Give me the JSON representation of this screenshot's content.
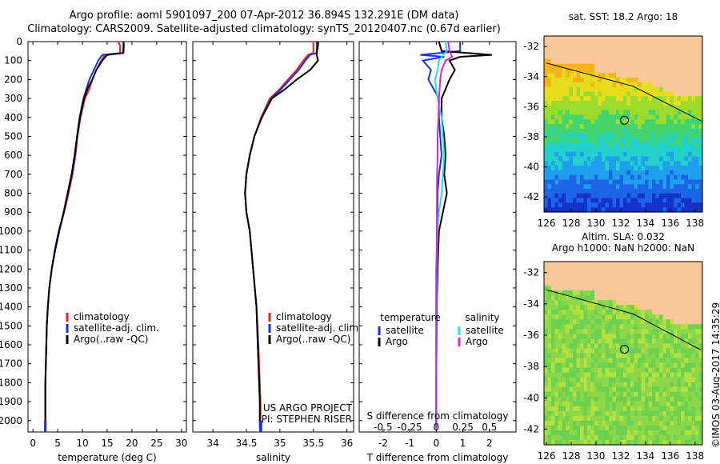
{
  "header": {
    "title": "Argo profile: aoml 5901097_200 07-Apr-2012 36.894S 132.291E (DM data)",
    "subtitle": "Climatology: CARS2009. Satellite-adjusted climatology: synTS_20120407.nc (0.67d earlier)"
  },
  "colors": {
    "climatology": "#ee1c1c",
    "satellite": "#1432e6",
    "argo": "#000000",
    "satellite_sal": "#22e0ee",
    "argo_sal": "#e020e0",
    "land": "#f8c89a"
  },
  "stamp": "©IMOS 03-Aug-2017 14:35:29",
  "chart_data": [
    {
      "type": "line",
      "xlabel": "temperature (deg C)",
      "ylabel": "",
      "xlim": [
        -1,
        31
      ],
      "ylim": [
        2060,
        0
      ],
      "xticks": [
        "0",
        "5",
        "10",
        "15",
        "20",
        "25",
        "30"
      ],
      "yticks": [
        "0",
        "100",
        "200",
        "300",
        "400",
        "500",
        "600",
        "700",
        "800",
        "900",
        "1000",
        "1100",
        "1200",
        "1300",
        "1400",
        "1500",
        "1600",
        "1700",
        "1800",
        "1900",
        "2000"
      ],
      "legend": [
        "climatology",
        "satellite-adj. clim.",
        "Argo(..raw -QC)"
      ],
      "series": [
        {
          "name": "climatology",
          "color": "#ee1c1c",
          "x": [
            17.2,
            17.6,
            17.6,
            14.5,
            13.8,
            12.8,
            12.0,
            11.4,
            10.5,
            9.6,
            9.0,
            8.6,
            8.0,
            7.2,
            6.3,
            5.3,
            4.5,
            3.8,
            3.3,
            3.0,
            2.8,
            2.7,
            2.6,
            2.5,
            2.5,
            2.5
          ],
          "y": [
            0,
            20,
            60,
            70,
            100,
            150,
            200,
            250,
            300,
            400,
            500,
            600,
            700,
            800,
            900,
            1000,
            1100,
            1200,
            1300,
            1400,
            1500,
            1600,
            1700,
            1800,
            1900,
            2040
          ]
        },
        {
          "name": "satellite-adj. clim.",
          "color": "#1432e6",
          "x": [
            18.3,
            18.4,
            18.3,
            14.0,
            13.2,
            12.3,
            11.4,
            10.8,
            10.2,
            9.4,
            8.9,
            8.5,
            7.9,
            7.1,
            6.2,
            5.2,
            4.4,
            3.8,
            3.3,
            3.0,
            2.8,
            2.7,
            2.6,
            2.5,
            2.5,
            2.5
          ],
          "y": [
            0,
            20,
            60,
            70,
            100,
            150,
            200,
            250,
            300,
            400,
            500,
            600,
            700,
            800,
            900,
            1000,
            1100,
            1200,
            1300,
            1400,
            1500,
            1600,
            1700,
            1800,
            1900,
            2040
          ]
        },
        {
          "name": "Argo(..raw -QC)",
          "color": "#000000",
          "x": [
            18.3,
            18.3,
            18.2,
            15.0,
            14.0,
            12.8,
            12.0,
            11.0,
            10.3,
            9.5,
            8.9,
            8.4,
            7.8,
            7.0,
            6.2,
            5.3,
            4.5,
            3.8,
            3.3,
            3.0,
            2.8,
            2.7,
            2.6,
            2.5,
            2.5,
            2.5
          ],
          "y": [
            0,
            20,
            60,
            70,
            100,
            150,
            200,
            250,
            300,
            400,
            500,
            600,
            700,
            800,
            900,
            1000,
            1100,
            1200,
            1300,
            1400,
            1500,
            1600,
            1700,
            1800,
            1900,
            2040
          ]
        }
      ]
    },
    {
      "type": "line",
      "xlabel": "salinity",
      "xlim": [
        33.7,
        36.1
      ],
      "ylim": [
        2060,
        0
      ],
      "xticks": [
        "34",
        "34.5",
        "35",
        "35.5",
        "36"
      ],
      "legend": [
        "climatology",
        "satellite-adj. clim.",
        "Argo(..raw -QC)"
      ],
      "annotation": [
        "US ARGO PROJECT",
        "PI: STEPHEN RISER"
      ],
      "series": [
        {
          "name": "climatology",
          "color": "#ee1c1c",
          "x": [
            35.5,
            35.5,
            35.5,
            35.42,
            35.35,
            35.25,
            35.12,
            35.0,
            34.85,
            34.72,
            34.62,
            34.55,
            34.5,
            34.48,
            34.5,
            34.55,
            34.6,
            34.65,
            34.68,
            34.7,
            34.71,
            34.71,
            34.72
          ],
          "y": [
            0,
            20,
            60,
            70,
            100,
            150,
            200,
            250,
            300,
            400,
            500,
            600,
            700,
            800,
            900,
            1000,
            1200,
            1400,
            1600,
            1800,
            1900,
            2000,
            2040
          ]
        },
        {
          "name": "satellite-adj. clim.",
          "color": "#1432e6",
          "x": [
            35.55,
            35.55,
            35.55,
            35.45,
            35.38,
            35.28,
            35.15,
            35.02,
            34.87,
            34.73,
            34.62,
            34.55,
            34.5,
            34.48,
            34.5,
            34.55,
            34.6,
            34.65,
            34.67,
            34.69,
            34.7,
            34.7,
            34.71
          ],
          "y": [
            0,
            20,
            60,
            70,
            100,
            150,
            200,
            250,
            300,
            400,
            500,
            600,
            700,
            800,
            900,
            1000,
            1200,
            1400,
            1600,
            1800,
            1900,
            2000,
            2040
          ]
        },
        {
          "name": "Argo(..raw -QC)",
          "color": "#000000",
          "x": [
            35.57,
            35.57,
            35.55,
            35.55,
            35.57,
            35.45,
            35.25,
            35.08,
            34.88,
            34.73,
            34.62,
            34.55,
            34.5,
            34.48,
            34.5,
            34.55,
            34.6,
            34.65,
            34.67,
            34.69,
            34.7,
            34.7,
            34.7
          ],
          "y": [
            0,
            20,
            60,
            70,
            100,
            150,
            200,
            250,
            300,
            400,
            500,
            600,
            700,
            800,
            900,
            1000,
            1200,
            1400,
            1600,
            1800,
            1900,
            2000,
            2040
          ]
        }
      ]
    },
    {
      "type": "line",
      "xlabel": "T difference from climatology",
      "xlabel_top": "S difference from climatology",
      "xlim": [
        -2.9,
        3.0
      ],
      "ylim": [
        2060,
        0
      ],
      "xticks": [
        "-2",
        "-1",
        "0",
        "1",
        "2"
      ],
      "xticks_salinity": [
        "-0.5",
        "-0.25",
        "0",
        "0.25",
        "0.5"
      ],
      "legend_header": [
        "temperature",
        "salinity"
      ],
      "legend": [
        "satellite",
        "Argo",
        "satellite",
        "Argo"
      ],
      "series": [
        {
          "name": "temperature satellite",
          "color": "#1432e6",
          "x": [
            0.9,
            0.9,
            -0.6,
            0.3,
            -0.5,
            -0.2,
            -0.3,
            0.1,
            0.1,
            0.15,
            0.2,
            0.1,
            0.05,
            0.05,
            0,
            0,
            0,
            0,
            0
          ],
          "y": [
            0,
            50,
            70,
            80,
            100,
            150,
            200,
            300,
            400,
            500,
            600,
            700,
            800,
            1000,
            1200,
            1400,
            1600,
            1800,
            2040
          ]
        },
        {
          "name": "temperature Argo",
          "color": "#000000",
          "x": [
            0.1,
            0.2,
            2.1,
            0.9,
            0.5,
            0.7,
            0.5,
            0.2,
            0.2,
            0.3,
            0.35,
            0.3,
            0.4,
            0.1,
            0.05,
            0.02,
            0.01,
            0,
            0
          ],
          "y": [
            0,
            50,
            70,
            80,
            100,
            150,
            200,
            300,
            400,
            500,
            600,
            700,
            800,
            1000,
            1200,
            1400,
            1600,
            1800,
            2040
          ]
        },
        {
          "name": "salinity satellite",
          "color": "#22e0ee",
          "x": [
            0.35,
            0.4,
            0.2,
            0.1,
            0.05,
            -0.05,
            0.05,
            0.2,
            0.25,
            0.3,
            0.25,
            0.2,
            0.1,
            0.05,
            0.02,
            0.01,
            0,
            0
          ],
          "y": [
            0,
            50,
            80,
            100,
            150,
            200,
            300,
            400,
            500,
            600,
            700,
            800,
            900,
            1000,
            1200,
            1400,
            1600,
            2040
          ]
        },
        {
          "name": "salinity Argo",
          "color": "#e020e0",
          "x": [
            0.45,
            0.5,
            0.6,
            0.35,
            0.2,
            0.15,
            0.1,
            0.08,
            0.05,
            0.05,
            0.03,
            0.02,
            0,
            0
          ],
          "y": [
            0,
            50,
            80,
            100,
            150,
            200,
            300,
            400,
            500,
            600,
            700,
            1000,
            1400,
            2040
          ]
        }
      ]
    },
    {
      "type": "heatmap",
      "title": "sat. SST: 18.2 Argo: 18",
      "xticks": [
        "126",
        "128",
        "130",
        "132",
        "134",
        "136",
        "138"
      ],
      "yticks": [
        "-32",
        "-34",
        "-36",
        "-38",
        "-40",
        "-42"
      ],
      "xlim": [
        125.8,
        138.6
      ],
      "ylim": [
        -43.0,
        -31.3
      ],
      "marker": {
        "lon": 132.3,
        "lat": -36.9
      }
    },
    {
      "type": "heatmap",
      "title": [
        "Altim. SLA: 0.032",
        "Argo h1000: NaN h2000: NaN"
      ],
      "xticks": [
        "126",
        "128",
        "130",
        "132",
        "134",
        "136",
        "138"
      ],
      "yticks": [
        "-32",
        "-34",
        "-36",
        "-38",
        "-40",
        "-42"
      ],
      "xlim": [
        125.8,
        138.6
      ],
      "ylim": [
        -43.0,
        -31.3
      ],
      "marker": {
        "lon": 132.3,
        "lat": -36.9
      }
    }
  ]
}
